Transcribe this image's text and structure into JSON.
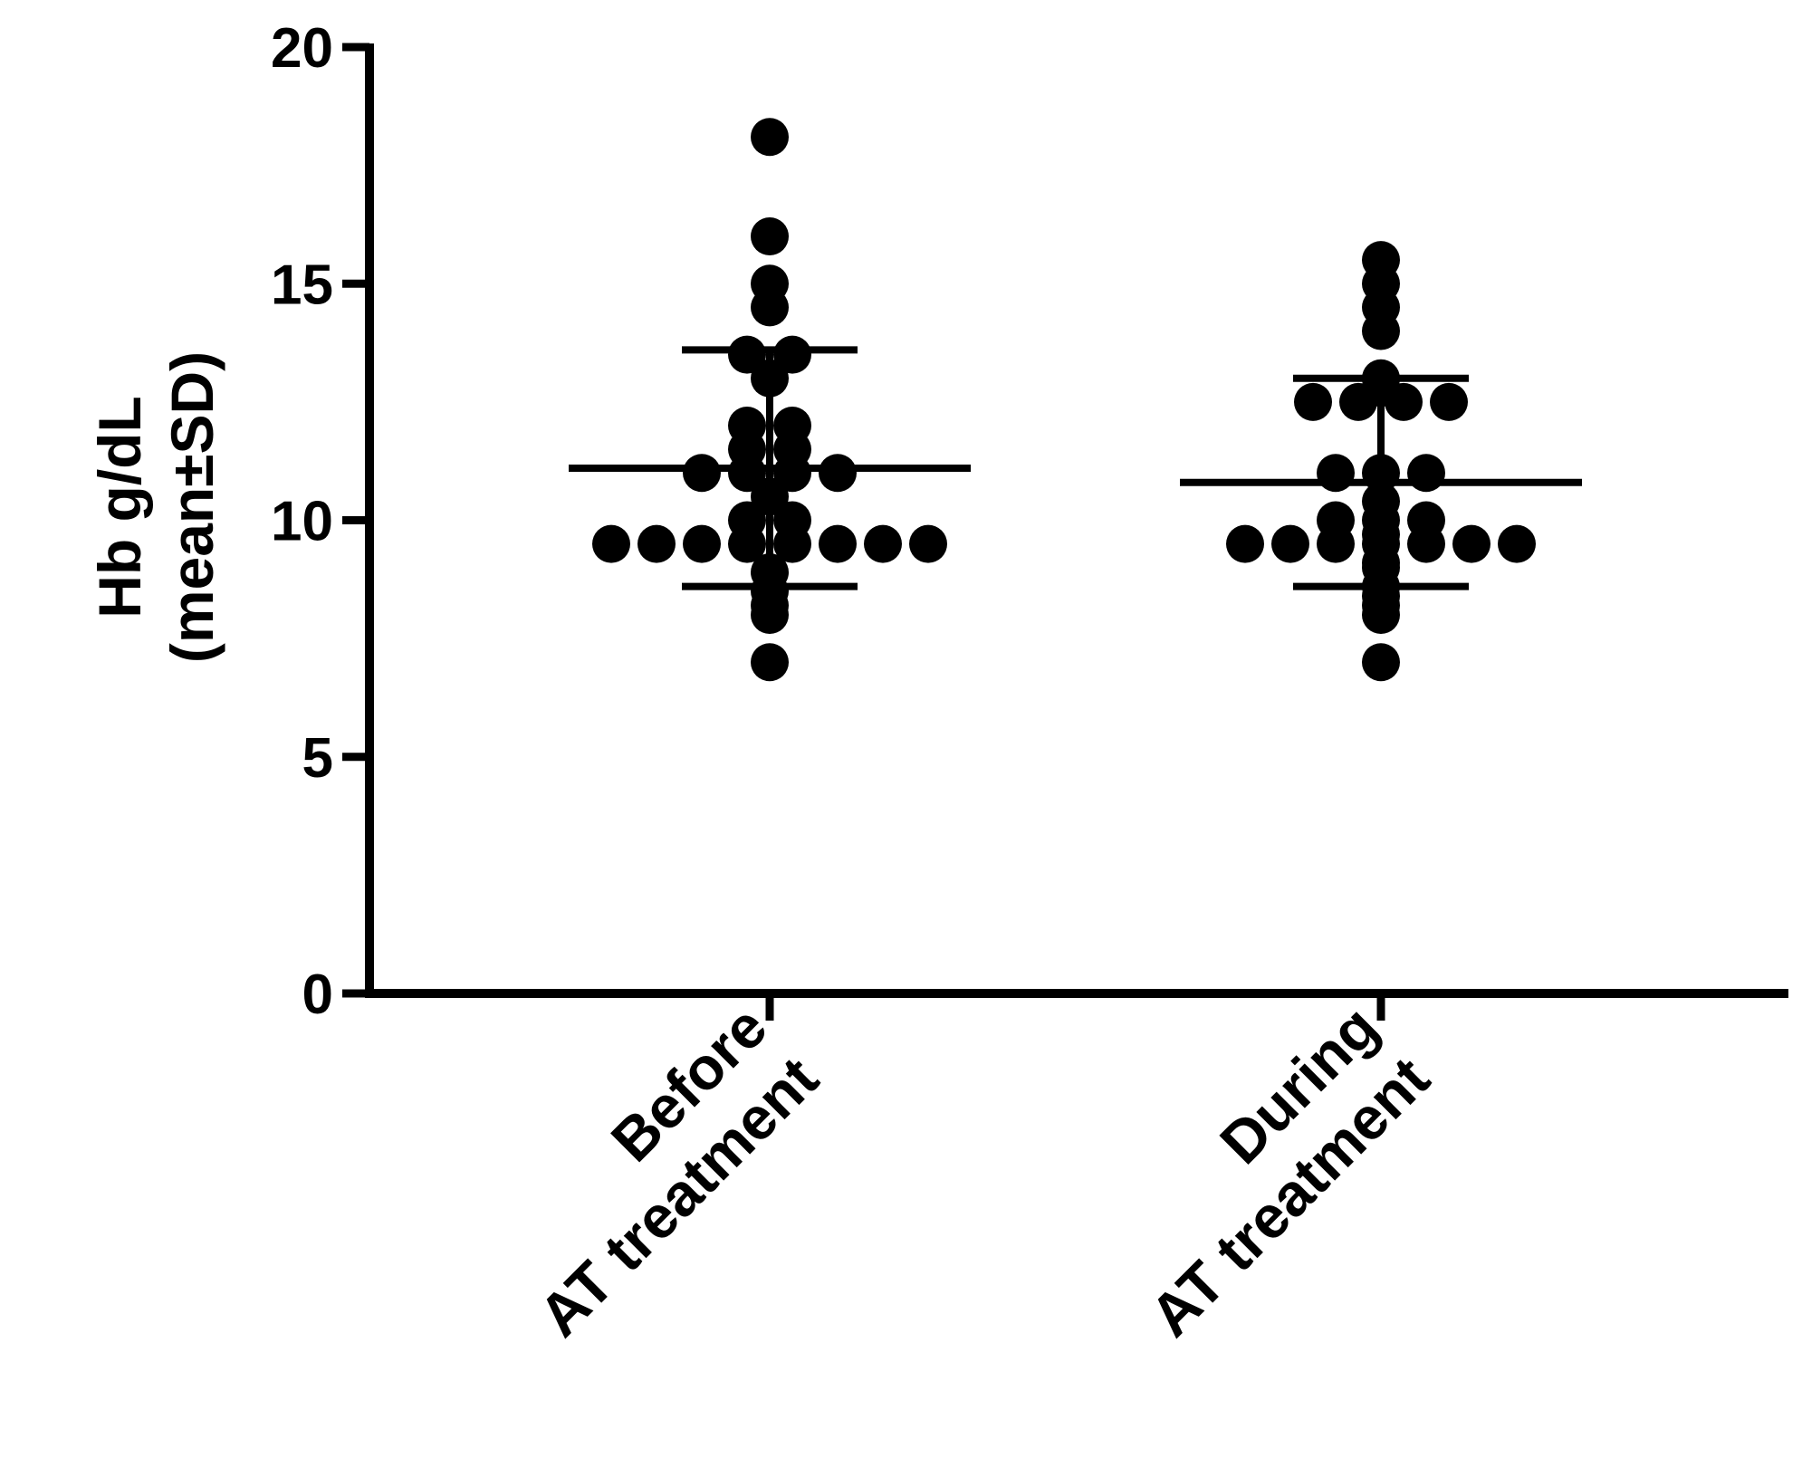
{
  "chart_data": {
    "type": "scatter",
    "title": "",
    "ylabel_line1": "Hb g/dL",
    "ylabel_line2": "(mean±SD)",
    "ylim": [
      0,
      20
    ],
    "yticks": [
      "0",
      "5",
      "10",
      "15",
      "20"
    ],
    "grid": false,
    "legend": "none",
    "categories": [
      {
        "line1": "Before",
        "line2": "AT treatment"
      },
      {
        "line1": "During",
        "line2": "AT treatment"
      }
    ],
    "series": [
      {
        "mean": 11.1,
        "sd_low": 8.6,
        "sd_high": 13.6,
        "values": [
          18.1,
          16.0,
          15.0,
          14.5,
          13.5,
          13.5,
          13.0,
          12.0,
          12.0,
          11.5,
          11.5,
          11.0,
          11.0,
          11.0,
          11.0,
          10.5,
          10.0,
          10.0,
          9.5,
          9.5,
          9.5,
          9.5,
          9.5,
          9.5,
          9.5,
          9.5,
          8.9,
          8.5,
          8.2,
          8.0,
          7.0
        ]
      },
      {
        "mean": 10.8,
        "sd_low": 8.6,
        "sd_high": 13.0,
        "values": [
          15.5,
          15.0,
          14.5,
          14.0,
          13.0,
          12.8,
          12.5,
          12.5,
          12.5,
          12.5,
          11.0,
          11.0,
          11.0,
          10.4,
          10.0,
          10.0,
          10.0,
          9.7,
          9.5,
          9.5,
          9.5,
          9.5,
          9.5,
          9.5,
          9.5,
          9.1,
          9.0,
          8.6,
          8.4,
          8.2,
          8.0,
          7.0
        ]
      }
    ],
    "colors": {
      "points": "#000000",
      "axes": "#000000"
    }
  }
}
